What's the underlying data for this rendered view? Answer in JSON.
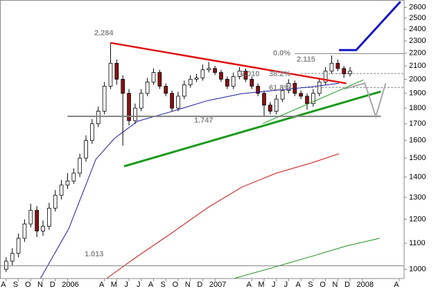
{
  "chart_data": {
    "type": "candlestick",
    "log_y": true,
    "ylim": [
      967,
      2670
    ],
    "yticks": [
      1000,
      1100,
      1200,
      1300,
      1400,
      1500,
      1600,
      1700,
      1800,
      1900,
      2000,
      2100,
      2200,
      2300,
      2400,
      2500,
      2600
    ],
    "xlim": [
      -0.5,
      32.4
    ],
    "xticks": [
      {
        "value": 0,
        "label": "A"
      },
      {
        "value": 1,
        "label": "S"
      },
      {
        "value": 2,
        "label": "O"
      },
      {
        "value": 3,
        "label": "N"
      },
      {
        "value": 4,
        "label": "D"
      },
      {
        "value": 5,
        "label": "2006"
      },
      {
        "value": 8,
        "label": "A"
      },
      {
        "value": 9,
        "label": "M"
      },
      {
        "value": 10,
        "label": "J"
      },
      {
        "value": 11,
        "label": "J"
      },
      {
        "value": 12,
        "label": "A"
      },
      {
        "value": 13,
        "label": "S"
      },
      {
        "value": 14,
        "label": "O"
      },
      {
        "value": 15,
        "label": "N"
      },
      {
        "value": 16,
        "label": "D"
      },
      {
        "value": 17,
        "label": "2007"
      },
      {
        "value": 20,
        "label": "A"
      },
      {
        "value": 21,
        "label": "M"
      },
      {
        "value": 22,
        "label": "J"
      },
      {
        "value": 23,
        "label": "J"
      },
      {
        "value": 24,
        "label": "A"
      },
      {
        "value": 25,
        "label": "S"
      },
      {
        "value": 26,
        "label": "O"
      },
      {
        "value": 27,
        "label": "N"
      },
      {
        "value": 28,
        "label": "D"
      },
      {
        "value": 29,
        "label": "2008"
      },
      {
        "value": 32,
        "label": "A"
      }
    ],
    "up_color": "#ffffff",
    "down_color": "#8b1010",
    "x": [
      0,
      0.5,
      1,
      1.5,
      2,
      2.5,
      3,
      3.5,
      4,
      4.5,
      5,
      5.5,
      6,
      6.5,
      7,
      7.5,
      8,
      8.5,
      9,
      9.5,
      10,
      10.5,
      11,
      11.5,
      12,
      12.5,
      13,
      13.5,
      14,
      14.5,
      15,
      15.5,
      16,
      16.5,
      17,
      17.5,
      18,
      18.5,
      19,
      19.5,
      20,
      20.5,
      21,
      21.5,
      22,
      22.5,
      23,
      23.5,
      24,
      24.5,
      25,
      25.5,
      26,
      26.5,
      27,
      27.5,
      28
    ],
    "ohlc": [
      [
        1000,
        1045,
        990,
        1030
      ],
      [
        1030,
        1080,
        1015,
        1060
      ],
      [
        1060,
        1140,
        1045,
        1120
      ],
      [
        1120,
        1200,
        1105,
        1180
      ],
      [
        1180,
        1270,
        1165,
        1240
      ],
      [
        1240,
        1260,
        1125,
        1150
      ],
      [
        1150,
        1195,
        1130,
        1170
      ],
      [
        1170,
        1275,
        1155,
        1250
      ],
      [
        1250,
        1335,
        1235,
        1310
      ],
      [
        1310,
        1385,
        1290,
        1360
      ],
      [
        1360,
        1420,
        1340,
        1380
      ],
      [
        1380,
        1445,
        1365,
        1420
      ],
      [
        1420,
        1525,
        1400,
        1500
      ],
      [
        1500,
        1630,
        1480,
        1600
      ],
      [
        1600,
        1730,
        1580,
        1700
      ],
      [
        1700,
        1810,
        1680,
        1780
      ],
      [
        1780,
        1980,
        1760,
        1950
      ],
      [
        1950,
        2284,
        1930,
        2120
      ],
      [
        2120,
        2150,
        1960,
        2000
      ],
      [
        2000,
        2030,
        1570,
        1900
      ],
      [
        1900,
        1930,
        1690,
        1720
      ],
      [
        1720,
        1830,
        1700,
        1800
      ],
      [
        1800,
        1930,
        1780,
        1900
      ],
      [
        1900,
        2010,
        1880,
        1980
      ],
      [
        1980,
        2080,
        1960,
        2050
      ],
      [
        2050,
        2070,
        1930,
        1950
      ],
      [
        1950,
        1970,
        1880,
        1900
      ],
      [
        1900,
        1920,
        1780,
        1800
      ],
      [
        1800,
        1910,
        1780,
        1880
      ],
      [
        1880,
        1990,
        1860,
        1960
      ],
      [
        1960,
        2030,
        1940,
        2000
      ],
      [
        2000,
        2040,
        1980,
        2010
      ],
      [
        2010,
        2110,
        1990,
        2070
      ],
      [
        2070,
        2130,
        2050,
        2080
      ],
      [
        2080,
        2100,
        2030,
        2050
      ],
      [
        2050,
        2070,
        1980,
        2000
      ],
      [
        2000,
        2020,
        1930,
        1950
      ],
      [
        1950,
        2050,
        1930,
        2020
      ],
      [
        2020,
        2090,
        2000,
        2060
      ],
      [
        2060,
        2080,
        1980,
        2000
      ],
      [
        2000,
        2020,
        1930,
        1950
      ],
      [
        1950,
        1970,
        1880,
        1900
      ],
      [
        1900,
        1920,
        1747,
        1820
      ],
      [
        1820,
        1840,
        1760,
        1780
      ],
      [
        1780,
        1890,
        1760,
        1860
      ],
      [
        1860,
        1950,
        1840,
        1920
      ],
      [
        1920,
        2000,
        1900,
        1970
      ],
      [
        1970,
        1990,
        1880,
        1900
      ],
      [
        1900,
        1920,
        1860,
        1880
      ],
      [
        1880,
        1900,
        1790,
        1830
      ],
      [
        1830,
        1930,
        1810,
        1900
      ],
      [
        1900,
        2010,
        1880,
        1980
      ],
      [
        1980,
        2090,
        1960,
        2060
      ],
      [
        2060,
        2180,
        2040,
        2120
      ],
      [
        2120,
        2150,
        2060,
        2080
      ],
      [
        2080,
        2100,
        2010,
        2040
      ],
      [
        2040,
        2090,
        2020,
        2060
      ]
    ],
    "lines": [
      {
        "color": "#1a1aa0",
        "width": 1,
        "x": [
          2.8,
          5.1,
          7.3,
          8.8,
          10.7,
          13.6,
          16.4,
          19.2,
          22.0,
          24.9,
          27.1
        ],
        "values": [
          968,
          1160,
          1493,
          1611,
          1716,
          1781,
          1850,
          1898,
          1921,
          1946,
          1970
        ]
      },
      {
        "color": "#cc1010",
        "width": 1,
        "x": [
          8.2,
          10.7,
          13.6,
          16.4,
          19.2,
          22.0,
          24.9,
          27.1
        ],
        "values": [
          968,
          1049,
          1146,
          1252,
          1350,
          1420,
          1475,
          1524
        ]
      },
      {
        "color": "#1a8c1a",
        "width": 1,
        "x": [
          18.6,
          22.0,
          24.9,
          27.7,
          30.4
        ],
        "values": [
          968,
          1010,
          1049,
          1089,
          1120
        ]
      },
      {
        "color": "#e01010",
        "width": 2.5,
        "x": [
          8.5,
          27.7
        ],
        "values": [
          2284,
          1970
        ]
      },
      {
        "color": "#1a9a1a",
        "width": 3,
        "x": [
          9.6,
          30.5
        ],
        "values": [
          1456,
          1912
        ]
      },
      {
        "color": "#1a9a1a",
        "width": 1,
        "x": [
          20.9,
          29.1
        ],
        "values": [
          1702,
          1996
        ]
      },
      {
        "color": "#808080",
        "width": 2,
        "x": [
          5,
          30.5
        ],
        "values": [
          1747,
          1747
        ]
      },
      {
        "color": "#808080",
        "width": 1,
        "x": [
          -0.5,
          32.4
        ],
        "values": [
          1013,
          1013
        ]
      },
      {
        "color": "#808080",
        "width": 1,
        "x": [
          23.5,
          32.4
        ],
        "values": [
          2196,
          2196
        ]
      },
      {
        "color": "#1414c8",
        "width": 3,
        "x": [
          27.1,
          28.5,
          32.1
        ],
        "values": [
          2225,
          2225,
          2654
        ]
      },
      {
        "color": "#a8a8a8",
        "width": 2,
        "x": [
          27.5,
          29.2,
          30.1,
          30.9
        ],
        "values": [
          1930,
          1971,
          1746,
          1971
        ]
      }
    ],
    "dashed_lines": [
      {
        "color": "#808080",
        "x": [
          24,
          32.4
        ],
        "values": [
          2042,
          2042
        ]
      },
      {
        "color": "#808080",
        "x": [
          24,
          32.4
        ],
        "values": [
          1941,
          1941
        ]
      }
    ],
    "annotations": [
      "2.284",
      "0.0%",
      "2.115",
      "2.010",
      "38.2%",
      "61.8%",
      "1.747",
      "1.013"
    ]
  }
}
